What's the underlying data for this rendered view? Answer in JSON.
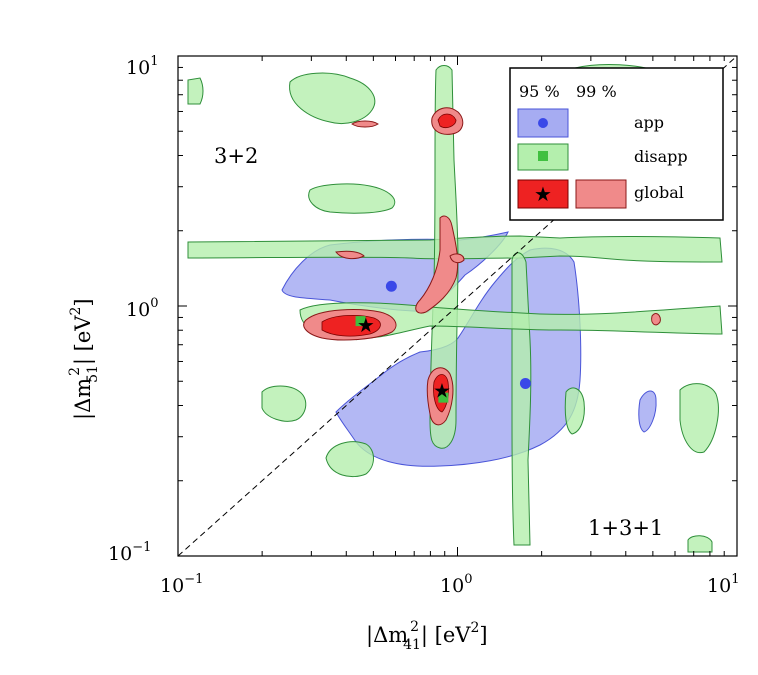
{
  "chart_data": {
    "type": "contour",
    "x_axis": {
      "scale": "log",
      "range": [
        0.1,
        10
      ],
      "ticks": [
        {
          "base": "10",
          "exp": "−1"
        },
        {
          "base": "10",
          "exp": "0"
        },
        {
          "base": "10",
          "exp": "1"
        }
      ],
      "label": {
        "prefix": "|Δm",
        "sup": "2",
        "sub": "41",
        "suffix": "| [eV",
        "unit_sup": "2",
        "close": "]"
      }
    },
    "y_axis": {
      "scale": "log",
      "range": [
        0.1,
        10
      ],
      "ticks": [
        {
          "base": "10",
          "exp": "−1"
        },
        {
          "base": "10",
          "exp": "0"
        },
        {
          "base": "10",
          "exp": "1"
        }
      ],
      "label": {
        "prefix": "|Δm",
        "sup": "2",
        "sub": "51",
        "suffix": "| [eV",
        "unit_sup": "2",
        "close": "]"
      }
    },
    "annotations": [
      "3+2",
      "1+3+1"
    ],
    "legend": {
      "position": "top-right",
      "header_95": "95 %",
      "header_99": "99 %",
      "entries": [
        {
          "label": "app",
          "color_99": "#a0a8f0",
          "edge": "#4050d0",
          "marker": "circle",
          "marker_color": "#3a48e8"
        },
        {
          "label": "disapp",
          "color_99": "#b8f0b0",
          "edge": "#30a030",
          "marker": "square",
          "marker_color": "#40c040"
        },
        {
          "label": "global",
          "color_95": "#f02020",
          "color_99": "#f08a8a",
          "edge": "#a01010",
          "marker": "star",
          "marker_color": "#000000"
        }
      ]
    },
    "best_fit_points": [
      {
        "fit": "app",
        "x": 0.58,
        "y": 1.2
      },
      {
        "fit": "app",
        "x": 1.75,
        "y": 0.49
      },
      {
        "fit": "disapp",
        "x": 0.45,
        "y": 0.87
      },
      {
        "fit": "disapp",
        "x": 0.89,
        "y": 0.43
      },
      {
        "fit": "global",
        "x": 0.47,
        "y": 0.84
      },
      {
        "fit": "global",
        "x": 0.88,
        "y": 0.46
      }
    ],
    "diagonal": {
      "style": "dashed",
      "relation": "y = x"
    }
  }
}
